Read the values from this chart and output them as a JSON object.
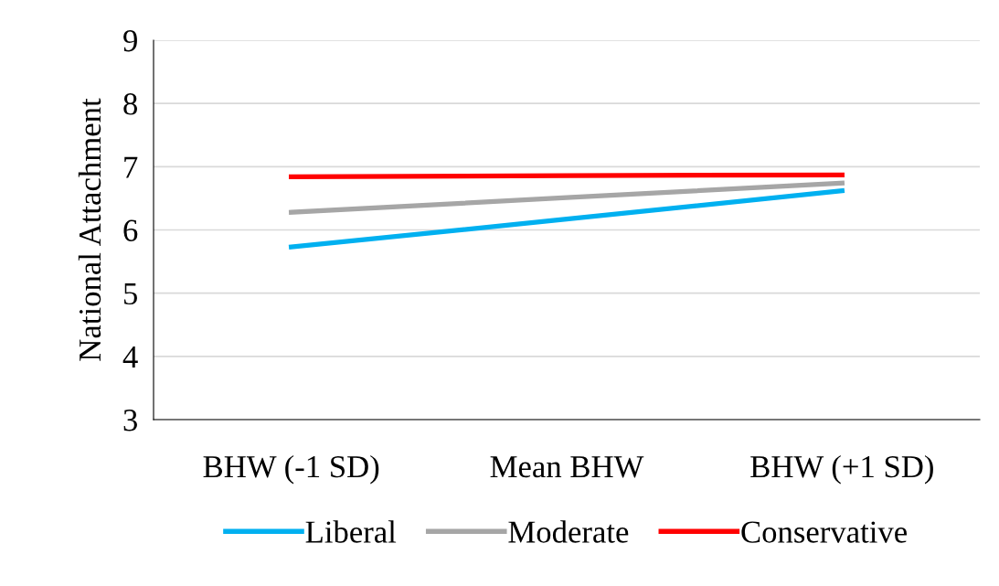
{
  "chart_data": {
    "type": "line",
    "ylabel": "National Attachment",
    "categories": [
      "BHW (-1 SD)",
      "Mean BHW",
      "BHW (+1 SD)"
    ],
    "series": [
      {
        "name": "Liberal",
        "color": "#00b0f0",
        "values": [
          5.73,
          6.17,
          6.62
        ]
      },
      {
        "name": "Moderate",
        "color": "#a6a6a6",
        "values": [
          6.28,
          6.51,
          6.74
        ]
      },
      {
        "name": "Conservative",
        "color": "#ff0000",
        "values": [
          6.84,
          6.86,
          6.87
        ]
      }
    ],
    "ylim": [
      3,
      9
    ],
    "yticks": [
      3,
      4,
      5,
      6,
      7,
      8,
      9
    ],
    "grid": "y",
    "legend": "bottom",
    "marker": "none",
    "line_style": "solid"
  }
}
